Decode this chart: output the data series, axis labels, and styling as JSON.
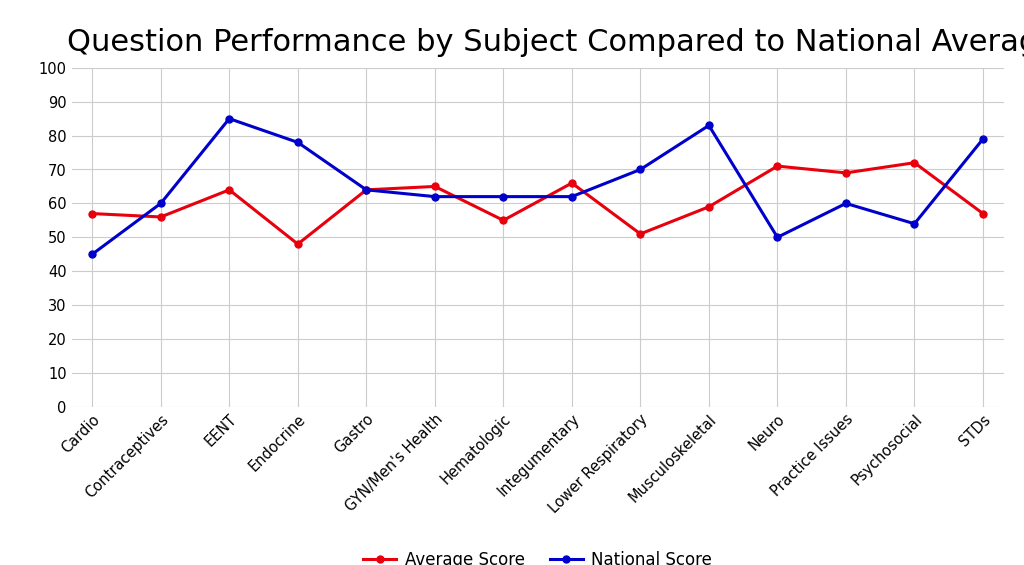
{
  "title": "Question Performance by Subject Compared to National Average",
  "categories": [
    "Cardio",
    "Contraceptives",
    "EENT",
    "Endocrine",
    "Gastro",
    "GYN/Men's Health",
    "Hematologic",
    "Integumentary",
    "Lower Respiratory",
    "Musculoskeletal",
    "Neuro",
    "Practice Issues",
    "Psychosocial",
    "STDs"
  ],
  "avg_score": [
    57,
    56,
    64,
    48,
    64,
    65,
    55,
    66,
    51,
    59,
    71,
    69,
    72,
    57
  ],
  "national_score": [
    45,
    60,
    85,
    78,
    64,
    62,
    62,
    62,
    70,
    83,
    50,
    60,
    54,
    79
  ],
  "avg_color": "#e8000d",
  "national_color": "#0000cc",
  "bg_color": "#ffffff",
  "grid_color": "#cccccc",
  "ylim": [
    0,
    100
  ],
  "yticks": [
    0,
    10,
    20,
    30,
    40,
    50,
    60,
    70,
    80,
    90,
    100
  ],
  "title_fontsize": 22,
  "legend_avg": "Average Score",
  "legend_national": "National Score",
  "line_width": 2.2,
  "marker": "o",
  "marker_size": 5
}
